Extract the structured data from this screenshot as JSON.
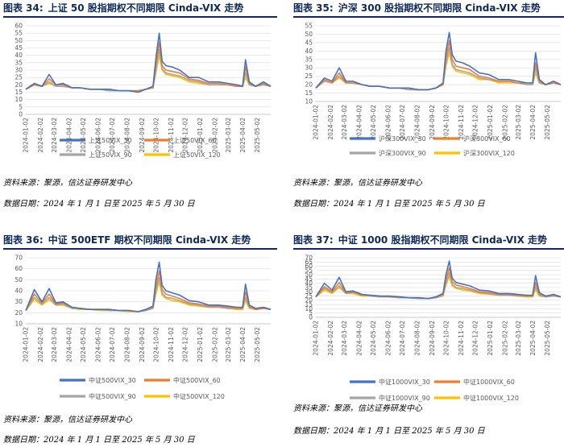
{
  "source_label": "资料来源：聚源，信达证券研发中心",
  "date_label": "数据日期：2024 年 1 月 1 日至 2025 年 5 月 30 日",
  "x_dates": [
    "2024-01-02",
    "2024-02-02",
    "2024-03-02",
    "2024-04-02",
    "2024-05-02",
    "2024-06-02",
    "2024-07-02",
    "2024-08-02",
    "2024-09-02",
    "2024-10-02",
    "2024-11-02",
    "2024-12-02",
    "2025-01-02",
    "2025-02-02",
    "2025-03-02",
    "2025-04-02",
    "2025-05-02"
  ],
  "colors": {
    "s30": "#4472C4",
    "s60": "#ED7D31",
    "s90": "#A5A5A5",
    "s120": "#FFC000",
    "title": "#0E2A5A"
  },
  "panels": [
    {
      "fig_label": "图表 34:",
      "title": "上证 50 股指期权不同期限 Cinda-VIX 走势",
      "chart_data": {
        "type": "line",
        "ylim": [
          0,
          60
        ],
        "yticks": [
          0,
          5,
          10,
          15,
          20,
          25,
          30,
          35,
          40,
          45,
          50,
          55,
          60
        ],
        "x_tick_labels": [
          "2024-01-02",
          "2024-02-02",
          "2024-03-02",
          "2024-04-02",
          "2024-05-02",
          "2024-06-02",
          "2024-07-02",
          "2024-08-02",
          "2024-09-02",
          "2024-10-02",
          "2024-11-02",
          "2024-12-02",
          "2025-01-02",
          "2025-02-02",
          "2025-03-02",
          "2025-04-02",
          "2025-05-02"
        ],
        "x_dates": [
          "2024-01-02",
          "2024-01-20",
          "2024-02-05",
          "2024-02-20",
          "2024-03-05",
          "2024-03-20",
          "2024-04-08",
          "2024-04-25",
          "2024-05-15",
          "2024-06-05",
          "2024-06-25",
          "2024-07-15",
          "2024-08-05",
          "2024-08-25",
          "2024-09-10",
          "2024-09-25",
          "2024-10-01",
          "2024-10-08",
          "2024-10-14",
          "2024-10-22",
          "2024-11-05",
          "2024-11-20",
          "2024-12-10",
          "2024-12-30",
          "2025-01-20",
          "2025-02-10",
          "2025-03-01",
          "2025-03-20",
          "2025-04-01",
          "2025-04-07",
          "2025-04-15",
          "2025-04-28",
          "2025-05-15",
          "2025-05-30"
        ],
        "series": [
          {
            "name": "上证50VIX_30",
            "values": [
              17,
              21,
              19,
              27,
              20,
              21,
              18,
              18,
              17,
              17,
              17,
              16,
              16,
              15,
              17,
              19,
              38,
              55,
              36,
              33,
              32,
              30,
              25,
              25,
              22,
              22,
              21,
              20,
              19,
              37,
              22,
              19,
              22,
              19
            ]
          },
          {
            "name": "上证50VIX_60",
            "values": [
              17,
              20,
              19,
              24,
              20,
              20,
              18,
              18,
              17,
              17,
              17,
              16,
              16,
              16,
              17,
              18,
              34,
              49,
              33,
              30,
              29,
              28,
              24,
              23,
              21,
              21,
              20,
              19,
              19,
              32,
              21,
              19,
              21,
              19
            ]
          },
          {
            "name": "上证50VIX_90",
            "values": [
              17,
              20,
              19,
              22,
              19,
              19,
              18,
              18,
              17,
              17,
              16,
              16,
              16,
              16,
              17,
              18,
              30,
              44,
              31,
              28,
              27,
              26,
              23,
              22,
              20,
              20,
              20,
              19,
              19,
              28,
              20,
              19,
              20,
              19
            ]
          },
          {
            "name": "上证50VIX_120",
            "values": [
              17,
              20,
              19,
              21,
              19,
              19,
              18,
              18,
              17,
              17,
              16,
              16,
              16,
              16,
              17,
              18,
              28,
              40,
              30,
              27,
              26,
              25,
              22,
              21,
              20,
              20,
              20,
              19,
              19,
              25,
              20,
              19,
              20,
              19
            ]
          }
        ]
      }
    },
    {
      "fig_label": "图表 35:",
      "title": "沪深 300 股指期权不同期限 Cinda-VIX 走势",
      "chart_data": {
        "type": "line",
        "ylim": [
          10,
          55
        ],
        "yticks": [
          10,
          15,
          20,
          25,
          30,
          35,
          40,
          45,
          50,
          55
        ],
        "x_tick_labels": [
          "2024-01-02",
          "2024-02-02",
          "2024-03-02",
          "2024-04-02",
          "2024-05-02",
          "2024-06-02",
          "2024-07-02",
          "2024-08-02",
          "2024-09-02",
          "2024-10-02",
          "2024-11-02",
          "2024-12-02",
          "2025-01-02",
          "2025-02-02",
          "2025-03-02",
          "2025-04-02",
          "2025-05-02"
        ],
        "x_dates": [
          "2024-01-02",
          "2024-01-20",
          "2024-02-05",
          "2024-02-20",
          "2024-03-05",
          "2024-03-20",
          "2024-04-08",
          "2024-04-25",
          "2024-05-15",
          "2024-06-05",
          "2024-06-25",
          "2024-07-15",
          "2024-08-05",
          "2024-08-25",
          "2024-09-10",
          "2024-09-25",
          "2024-10-01",
          "2024-10-08",
          "2024-10-14",
          "2024-10-22",
          "2024-11-05",
          "2024-11-20",
          "2024-12-10",
          "2024-12-30",
          "2025-01-20",
          "2025-02-10",
          "2025-03-01",
          "2025-03-20",
          "2025-04-01",
          "2025-04-07",
          "2025-04-15",
          "2025-04-28",
          "2025-05-15",
          "2025-05-30"
        ],
        "series": [
          {
            "name": "沪深300VIX_30",
            "values": [
              18,
              24,
              22,
              30,
              22,
              22,
              20,
              19,
              19,
              18,
              18,
              18,
              17,
              17,
              18,
              21,
              40,
              51,
              38,
              34,
              33,
              31,
              27,
              26,
              23,
              23,
              22,
              21,
              21,
              39,
              23,
              20,
              22,
              20
            ]
          },
          {
            "name": "沪深300VIX_60",
            "values": [
              18,
              23,
              21,
              27,
              21,
              21,
              20,
              19,
              19,
              18,
              18,
              18,
              17,
              17,
              18,
              20,
              36,
              46,
              35,
              31,
              30,
              29,
              25,
              24,
              22,
              22,
              21,
              21,
              21,
              33,
              22,
              20,
              21,
              20
            ]
          },
          {
            "name": "沪深300VIX_90",
            "values": [
              18,
              22,
              21,
              25,
              21,
              21,
              20,
              19,
              19,
              18,
              18,
              17,
              17,
              17,
              18,
              20,
              33,
              42,
              32,
              29,
              28,
              27,
              24,
              23,
              22,
              22,
              21,
              20,
              20,
              30,
              21,
              20,
              21,
              20
            ]
          },
          {
            "name": "沪深300VIX_120",
            "values": [
              18,
              22,
              21,
              24,
              21,
              21,
              20,
              19,
              19,
              18,
              18,
              17,
              17,
              17,
              18,
              20,
              31,
              39,
              31,
              28,
              27,
              26,
              23,
              23,
              21,
              21,
              21,
              20,
              20,
              27,
              21,
              20,
              21,
              20
            ]
          }
        ]
      }
    },
    {
      "fig_label": "图表 36:",
      "title": "中证 500ETF 期权不同期限 Cinda-VIX 走势",
      "chart_data": {
        "type": "line",
        "ylim": [
          10,
          70
        ],
        "yticks": [
          10,
          20,
          30,
          40,
          50,
          60,
          70
        ],
        "x_tick_labels": [
          "2024-01-02",
          "2024-02-02",
          "2024-03-02",
          "2024-04-02",
          "2024-05-02",
          "2024-06-02",
          "2024-07-02",
          "2024-08-02",
          "2024-09-02",
          "2024-10-02",
          "2024-11-02",
          "2024-12-02",
          "2025-01-02",
          "2025-02-02",
          "2025-03-02",
          "2025-04-02",
          "2025-05-02"
        ],
        "x_dates": [
          "2024-01-02",
          "2024-01-20",
          "2024-02-05",
          "2024-02-20",
          "2024-03-05",
          "2024-03-20",
          "2024-04-08",
          "2024-04-25",
          "2024-05-15",
          "2024-06-05",
          "2024-06-25",
          "2024-07-15",
          "2024-08-05",
          "2024-08-25",
          "2024-09-10",
          "2024-09-25",
          "2024-10-01",
          "2024-10-08",
          "2024-10-14",
          "2024-10-22",
          "2024-11-05",
          "2024-11-20",
          "2024-12-10",
          "2024-12-30",
          "2025-01-20",
          "2025-02-10",
          "2025-03-01",
          "2025-03-20",
          "2025-04-01",
          "2025-04-07",
          "2025-04-15",
          "2025-04-28",
          "2025-05-15",
          "2025-05-30"
        ],
        "series": [
          {
            "name": "中证500VIX_30",
            "values": [
              22,
              41,
              30,
              42,
              29,
              30,
              25,
              24,
              23,
              23,
              23,
              22,
              22,
              21,
              23,
              26,
              50,
              66,
              45,
              40,
              38,
              36,
              31,
              30,
              27,
              27,
              26,
              25,
              25,
              46,
              27,
              24,
              25,
              23
            ]
          },
          {
            "name": "中证500VIX_60",
            "values": [
              22,
              37,
              29,
              37,
              28,
              29,
              25,
              24,
              23,
              23,
              23,
              22,
              22,
              21,
              23,
              25,
              44,
              58,
              41,
              37,
              35,
              33,
              29,
              28,
              26,
              26,
              25,
              24,
              24,
              39,
              26,
              23,
              24,
              23
            ]
          },
          {
            "name": "中证500VIX_90",
            "values": [
              22,
              34,
              28,
              34,
              27,
              28,
              24,
              24,
              23,
              23,
              22,
              22,
              22,
              21,
              22,
              24,
              40,
              52,
              38,
              34,
              33,
              31,
              28,
              27,
              25,
              25,
              24,
              24,
              24,
              34,
              25,
              23,
              24,
              23
            ]
          },
          {
            "name": "中证500VIX_120",
            "values": [
              22,
              32,
              27,
              32,
              27,
              27,
              24,
              23,
              23,
              22,
              22,
              22,
              21,
              21,
              22,
              24,
              37,
              48,
              36,
              33,
              31,
              30,
              27,
              26,
              25,
              25,
              24,
              23,
              23,
              31,
              24,
              23,
              24,
              23
            ]
          }
        ]
      }
    },
    {
      "fig_label": "图表 37:",
      "title": "中证 1000 股指期权不同期限 Cinda-VIX 走势",
      "chart_data": {
        "type": "line",
        "ylim": [
          0,
          70
        ],
        "yticks": [
          0,
          5,
          10,
          15,
          20,
          25,
          30,
          35,
          40,
          45,
          50,
          55,
          60,
          65,
          70
        ],
        "x_tick_labels": [
          "2024-01-02",
          "2024-02-02",
          "2024-03-02",
          "2024-04-02",
          "2024-05-02",
          "2024-06-02",
          "2024-07-02",
          "2024-08-02",
          "2024-09-02",
          "2024-10-02",
          "2024-11-02",
          "2024-12-02",
          "2025-01-02",
          "2025-02-02",
          "2025-03-02",
          "2025-04-02",
          "2025-05-02"
        ],
        "x_dates": [
          "2024-01-02",
          "2024-01-20",
          "2024-02-05",
          "2024-02-20",
          "2024-03-05",
          "2024-03-20",
          "2024-04-08",
          "2024-04-25",
          "2024-05-15",
          "2024-06-05",
          "2024-06-25",
          "2024-07-15",
          "2024-08-05",
          "2024-08-25",
          "2024-09-10",
          "2024-09-25",
          "2024-10-01",
          "2024-10-08",
          "2024-10-14",
          "2024-10-22",
          "2024-11-05",
          "2024-11-20",
          "2024-12-10",
          "2024-12-30",
          "2025-01-20",
          "2025-02-10",
          "2025-03-01",
          "2025-03-20",
          "2025-04-01",
          "2025-04-07",
          "2025-04-15",
          "2025-04-28",
          "2025-05-15",
          "2025-05-30"
        ],
        "series": [
          {
            "name": "中证1000VIX_30",
            "values": [
              24,
              40,
              32,
              47,
              30,
              31,
              27,
              26,
              25,
              25,
              24,
              23,
              23,
              22,
              24,
              28,
              50,
              66,
              46,
              41,
              39,
              37,
              32,
              31,
              28,
              28,
              27,
              26,
              26,
              49,
              29,
              25,
              27,
              24
            ]
          },
          {
            "name": "中证1000VIX_60",
            "values": [
              24,
              36,
              30,
              41,
              29,
              30,
              26,
              26,
              25,
              24,
              24,
              23,
              23,
              22,
              24,
              27,
              44,
              58,
              42,
              38,
              36,
              34,
              30,
              29,
              27,
              27,
              26,
              25,
              25,
              41,
              27,
              25,
              26,
              24
            ]
          },
          {
            "name": "中证1000VIX_90",
            "values": [
              24,
              34,
              29,
              37,
              28,
              29,
              26,
              25,
              24,
              24,
              23,
              23,
              22,
              22,
              23,
              26,
              40,
              52,
              39,
              35,
              34,
              32,
              29,
              28,
              26,
              26,
              25,
              25,
              25,
              36,
              26,
              24,
              25,
              24
            ]
          },
          {
            "name": "中证1000VIX_120",
            "values": [
              24,
              32,
              28,
              35,
              28,
              28,
              25,
              25,
              24,
              24,
              23,
              23,
              22,
              22,
              23,
              25,
              38,
              48,
              37,
              34,
              32,
              31,
              28,
              27,
              26,
              26,
              25,
              24,
              24,
              33,
              25,
              24,
              25,
              24
            ]
          }
        ]
      }
    }
  ]
}
